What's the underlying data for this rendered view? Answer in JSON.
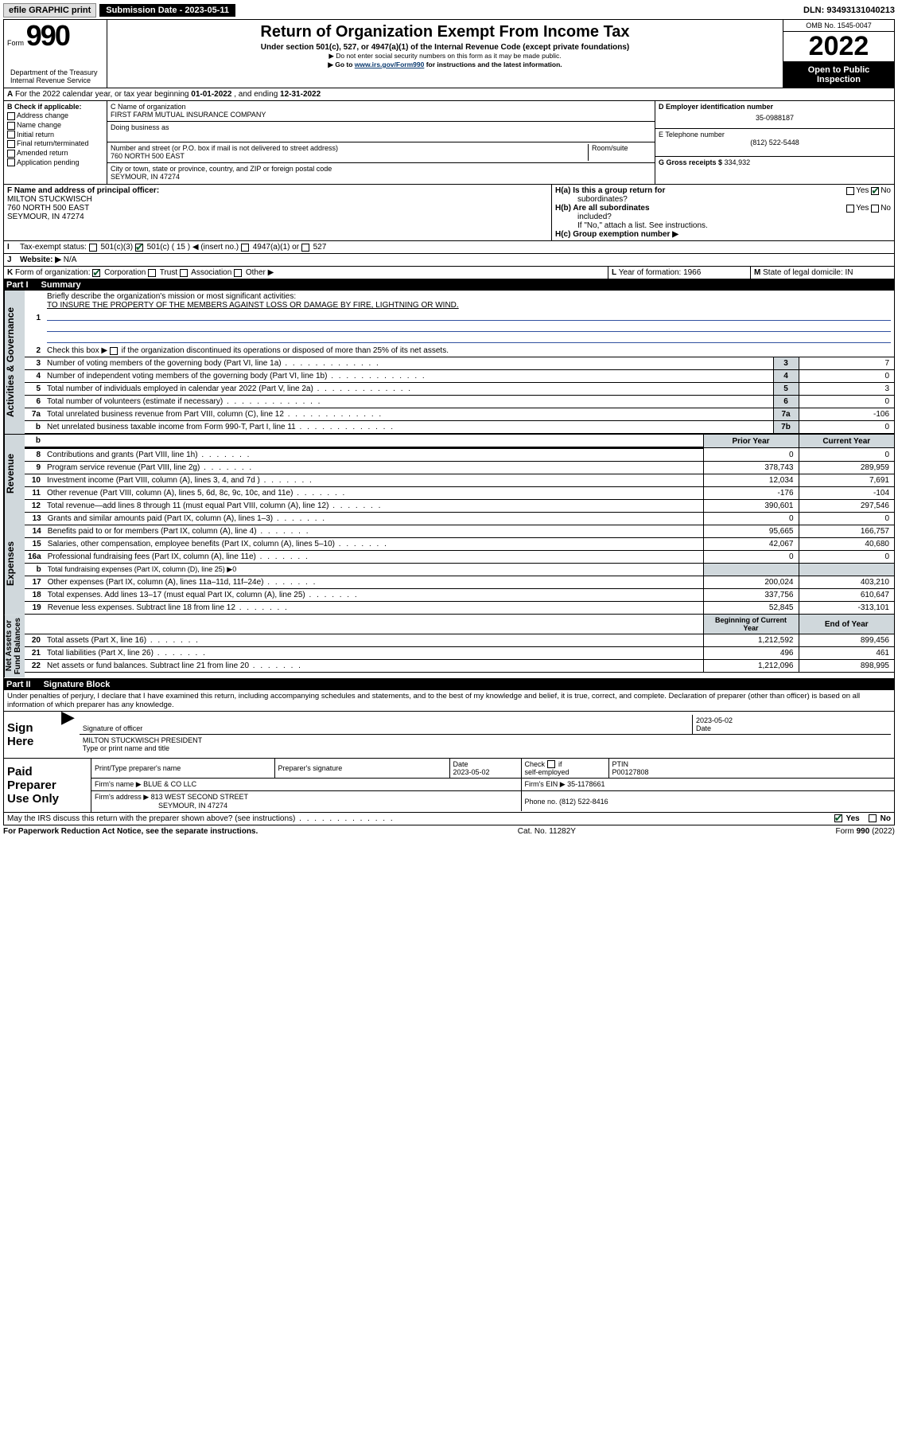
{
  "topbar": {
    "efile": "efile GRAPHIC print",
    "sub_date_label": "Submission Date - 2023-05-11",
    "dln": "DLN: 93493131040213"
  },
  "header": {
    "form_prefix": "Form",
    "form_number": "990",
    "title": "Return of Organization Exempt From Income Tax",
    "subtitle": "Under section 501(c), 527, or 4947(a)(1) of the Internal Revenue Code (except private foundations)",
    "caution1": "▶ Do not enter social security numbers on this form as it may be made public.",
    "caution2_pre": "▶ Go to ",
    "caution2_link": "www.irs.gov/Form990",
    "caution2_post": " for instructions and the latest information.",
    "dept": "Department of the Treasury\nInternal Revenue Service",
    "omb": "OMB No. 1545-0047",
    "year": "2022",
    "open_public": "Open to Public\nInspection"
  },
  "section_a": {
    "label": "A",
    "text_pre": "For the 2022 calendar year, or tax year beginning ",
    "begin": "01-01-2022",
    "mid": " , and ending ",
    "end": "12-31-2022"
  },
  "section_b": {
    "label": "B Check if applicable:",
    "items": [
      "Address change",
      "Name change",
      "Initial return",
      "Final return/terminated",
      "Amended return",
      "Application pending"
    ]
  },
  "section_c": {
    "name_label": "C Name of organization",
    "name": "FIRST FARM MUTUAL INSURANCE COMPANY",
    "dba_label": "Doing business as",
    "dba": "",
    "street_label": "Number and street (or P.O. box if mail is not delivered to street address)",
    "room_label": "Room/suite",
    "street": "760 NORTH 500 EAST",
    "city_label": "City or town, state or province, country, and ZIP or foreign postal code",
    "city": "SEYMOUR, IN  47274"
  },
  "section_de": {
    "d_label": "D Employer identification number",
    "d_val": "35-0988187",
    "e_label": "E Telephone number",
    "e_val": "(812) 522-5448",
    "g_label": "G Gross receipts $ ",
    "g_val": "334,932"
  },
  "section_f": {
    "label": "F Name and address of principal officer:",
    "name": "MILTON STUCKWISCH",
    "addr1": "760 NORTH 500 EAST",
    "addr2": "SEYMOUR, IN  47274"
  },
  "section_h": {
    "a_label": "H(a)  Is this a group return for",
    "a_label2": "subordinates?",
    "a_yes": "Yes",
    "a_no": "No",
    "b_label": "H(b)  Are all subordinates",
    "b_label2": "included?",
    "b_note": "If \"No,\" attach a list. See instructions.",
    "c_label": "H(c)  Group exemption number ▶"
  },
  "section_i": {
    "label": "I",
    "text": "Tax-exempt status:",
    "opt1": "501(c)(3)",
    "opt2_pre": "501(c) ( ",
    "opt2_val": "15",
    "opt2_post": " ) ◀ (insert no.)",
    "opt3": "4947(a)(1) or",
    "opt4": "527"
  },
  "section_j": {
    "label": "J",
    "text": "Website: ▶",
    "val": "N/A"
  },
  "section_k": {
    "label": "K",
    "text": "Form of organization:",
    "corp": "Corporation",
    "trust": "Trust",
    "assoc": "Association",
    "other": "Other ▶"
  },
  "section_l": {
    "label": "L",
    "text": "Year of formation: ",
    "val": "1966"
  },
  "section_m": {
    "label": "M",
    "text": "State of legal domicile: ",
    "val": "IN"
  },
  "part1": {
    "header_num": "Part I",
    "header_title": "Summary",
    "line1_label": "Briefly describe the organization's mission or most significant activities:",
    "mission": "TO INSURE THE PROPERTY OF THE MEMBERS AGAINST LOSS OR DAMAGE BY FIRE, LIGHTNING OR WIND.",
    "line2_pre": "Check this box ▶",
    "line2_post": " if the organization discontinued its operations or disposed of more than 25% of its net assets.",
    "gov_lines": [
      {
        "n": "3",
        "t": "Number of voting members of the governing body (Part VI, line 1a)",
        "box": "3",
        "v": "7"
      },
      {
        "n": "4",
        "t": "Number of independent voting members of the governing body (Part VI, line 1b)",
        "box": "4",
        "v": "0"
      },
      {
        "n": "5",
        "t": "Total number of individuals employed in calendar year 2022 (Part V, line 2a)",
        "box": "5",
        "v": "3"
      },
      {
        "n": "6",
        "t": "Total number of volunteers (estimate if necessary)",
        "box": "6",
        "v": "0"
      },
      {
        "n": "7a",
        "t": "Total unrelated business revenue from Part VIII, column (C), line 12",
        "box": "7a",
        "v": "-106"
      },
      {
        "n": "b",
        "t": "Net unrelated business taxable income from Form 990-T, Part I, line 11",
        "box": "7b",
        "v": "0"
      }
    ],
    "prior_hdr": "Prior Year",
    "curr_hdr": "Current Year",
    "rev_lines": [
      {
        "n": "8",
        "t": "Contributions and grants (Part VIII, line 1h)",
        "p": "0",
        "c": "0"
      },
      {
        "n": "9",
        "t": "Program service revenue (Part VIII, line 2g)",
        "p": "378,743",
        "c": "289,959"
      },
      {
        "n": "10",
        "t": "Investment income (Part VIII, column (A), lines 3, 4, and 7d )",
        "p": "12,034",
        "c": "7,691"
      },
      {
        "n": "11",
        "t": "Other revenue (Part VIII, column (A), lines 5, 6d, 8c, 9c, 10c, and 11e)",
        "p": "-176",
        "c": "-104"
      },
      {
        "n": "12",
        "t": "Total revenue—add lines 8 through 11 (must equal Part VIII, column (A), line 12)",
        "p": "390,601",
        "c": "297,546"
      }
    ],
    "exp_lines": [
      {
        "n": "13",
        "t": "Grants and similar amounts paid (Part IX, column (A), lines 1–3)",
        "p": "0",
        "c": "0"
      },
      {
        "n": "14",
        "t": "Benefits paid to or for members (Part IX, column (A), line 4)",
        "p": "95,665",
        "c": "166,757"
      },
      {
        "n": "15",
        "t": "Salaries, other compensation, employee benefits (Part IX, column (A), lines 5–10)",
        "p": "42,067",
        "c": "40,680"
      },
      {
        "n": "16a",
        "t": "Professional fundraising fees (Part IX, column (A), line 11e)",
        "p": "0",
        "c": "0"
      },
      {
        "n": "b",
        "t": "Total fundraising expenses (Part IX, column (D), line 25) ▶0",
        "p": "",
        "c": "",
        "shade": true
      },
      {
        "n": "17",
        "t": "Other expenses (Part IX, column (A), lines 11a–11d, 11f–24e)",
        "p": "200,024",
        "c": "403,210"
      },
      {
        "n": "18",
        "t": "Total expenses. Add lines 13–17 (must equal Part IX, column (A), line 25)",
        "p": "337,756",
        "c": "610,647"
      },
      {
        "n": "19",
        "t": "Revenue less expenses. Subtract line 18 from line 12",
        "p": "52,845",
        "c": "-313,101"
      }
    ],
    "begin_hdr": "Beginning of Current Year",
    "end_hdr": "End of Year",
    "net_lines": [
      {
        "n": "20",
        "t": "Total assets (Part X, line 16)",
        "p": "1,212,592",
        "c": "899,456"
      },
      {
        "n": "21",
        "t": "Total liabilities (Part X, line 26)",
        "p": "496",
        "c": "461"
      },
      {
        "n": "22",
        "t": "Net assets or fund balances. Subtract line 21 from line 20",
        "p": "1,212,096",
        "c": "898,995"
      }
    ],
    "side_gov": "Activities & Governance",
    "side_rev": "Revenue",
    "side_exp": "Expenses",
    "side_net": "Net Assets or\nFund Balances"
  },
  "part2": {
    "header_num": "Part II",
    "header_title": "Signature Block",
    "penalties": "Under penalties of perjury, I declare that I have examined this return, including accompanying schedules and statements, and to the best of my knowledge and belief, it is true, correct, and complete. Declaration of preparer (other than officer) is based on all information of which preparer has any knowledge."
  },
  "sign": {
    "here": "Sign\nHere",
    "sig_label": "Signature of officer",
    "date_label": "Date",
    "date": "2023-05-02",
    "name": "MILTON STUCKWISCH  PRESIDENT",
    "name_label": "Type or print name and title"
  },
  "paid": {
    "label": "Paid\nPreparer\nUse Only",
    "h1": "Print/Type preparer's name",
    "h2": "Preparer's signature",
    "h3": "Date",
    "date": "2023-05-02",
    "h4_pre": "Check",
    "h4_post": "if\nself-employed",
    "h5": "PTIN",
    "ptin": "P00127808",
    "firm_name_label": "Firm's name    ▶ ",
    "firm_name": "BLUE & CO LLC",
    "firm_ein_label": "Firm's EIN ▶ ",
    "firm_ein": "35-1178661",
    "firm_addr_label": "Firm's address ▶ ",
    "firm_addr1": "813 WEST SECOND STREET",
    "firm_addr2": "SEYMOUR, IN  47274",
    "phone_label": "Phone no. ",
    "phone": "(812) 522-8416"
  },
  "discuss": {
    "text": "May the IRS discuss this return with the preparer shown above? (see instructions)",
    "yes": "Yes",
    "no": "No"
  },
  "footer": {
    "pra": "For Paperwork Reduction Act Notice, see the separate instructions.",
    "cat": "Cat. No. 11282Y",
    "form": "Form 990 (2022)"
  }
}
